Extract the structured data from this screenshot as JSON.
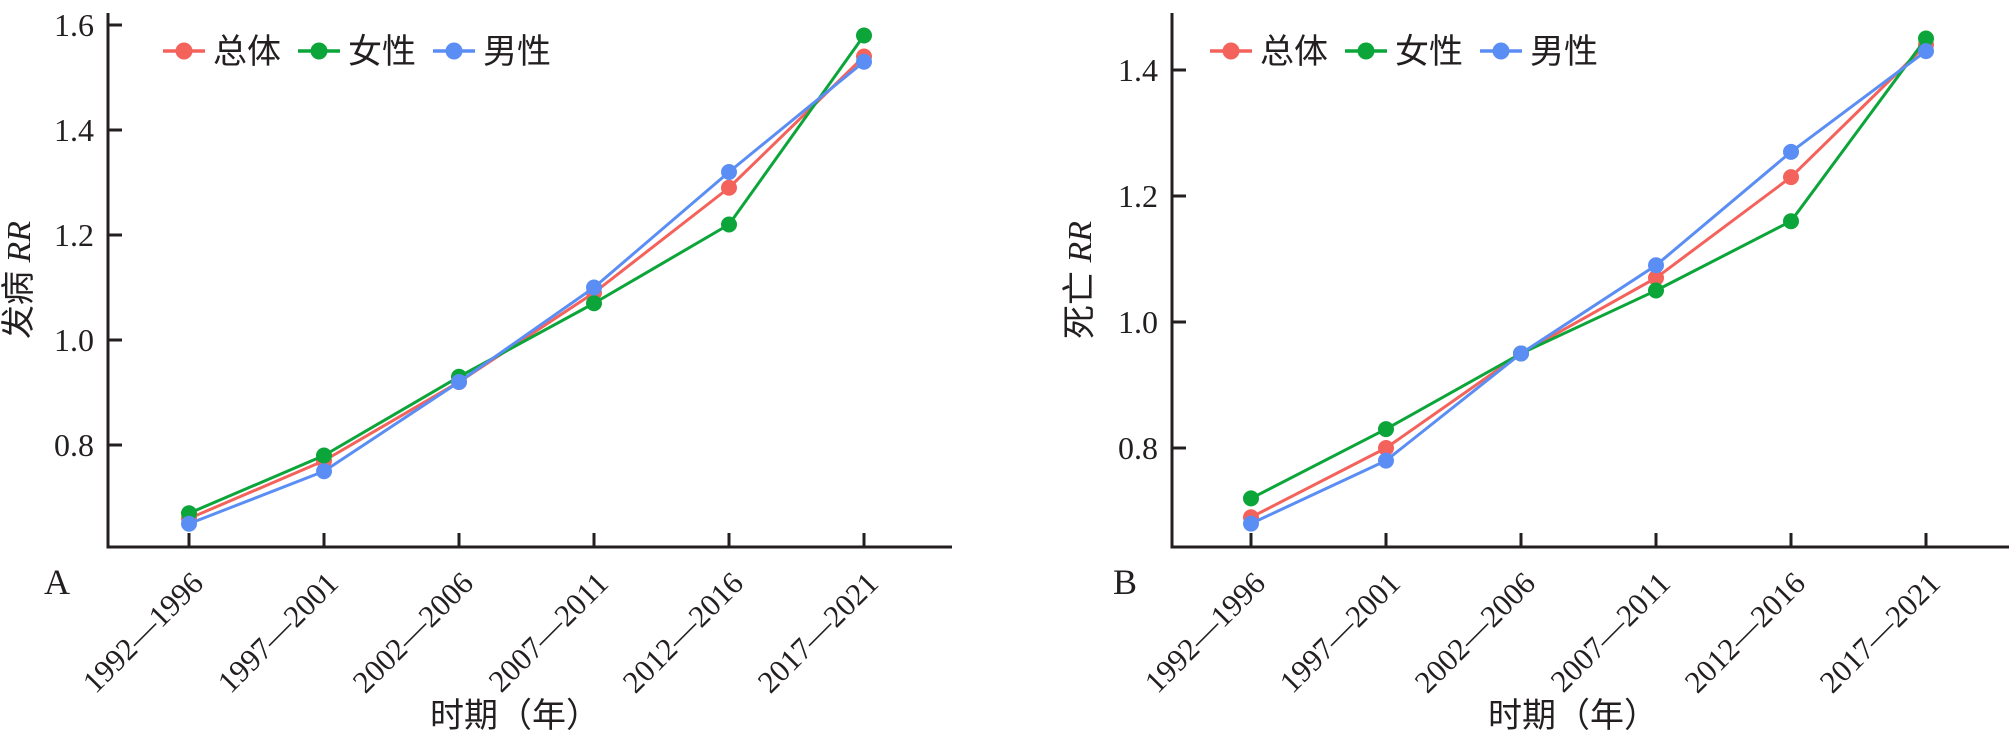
{
  "figure": {
    "background": "#ffffff",
    "xlabel": "时期（年）",
    "categories": [
      "1992—1996",
      "1997—2001",
      "2002—2006",
      "2007—2011",
      "2012—2016",
      "2017—2021"
    ]
  },
  "colors": {
    "axis": "#231f20",
    "text": "#231f20",
    "overall": "#f4625c",
    "female": "#0ca53a",
    "male": "#5b8ef4"
  },
  "chart_data": [
    {
      "type": "line",
      "panel_letter": "A",
      "ylabel": "发病 RR",
      "ylabel_cn": "发病",
      "ylabel_math": "RR",
      "xlabel": "时期（年）",
      "categories": [
        "1992—1996",
        "1997—2001",
        "2002—2006",
        "2007—2011",
        "2012—2016",
        "2017—2021"
      ],
      "yticks": [
        "0.8",
        "1.0",
        "1.2",
        "1.4",
        "1.6"
      ],
      "ylim": [
        0.61,
        1.62
      ],
      "grid": false,
      "legend_position": "top-left-inside",
      "marker": "circle",
      "series": [
        {
          "key": "overall",
          "name": "总体",
          "color": "#f4625c",
          "values": [
            0.66,
            0.77,
            0.92,
            1.09,
            1.29,
            1.54
          ]
        },
        {
          "key": "female",
          "name": "女性",
          "color": "#0ca53a",
          "values": [
            0.67,
            0.78,
            0.93,
            1.07,
            1.22,
            1.58
          ]
        },
        {
          "key": "male",
          "name": "男性",
          "color": "#5b8ef4",
          "values": [
            0.65,
            0.75,
            0.92,
            1.1,
            1.32,
            1.53
          ]
        }
      ]
    },
    {
      "type": "line",
      "panel_letter": "B",
      "ylabel": "死亡 RR",
      "ylabel_cn": "死亡",
      "ylabel_math": "RR",
      "xlabel": "时期（年）",
      "categories": [
        "1992—1996",
        "1997—2001",
        "2002—2006",
        "2007—2011",
        "2012—2016",
        "2017—2021"
      ],
      "yticks": [
        "0.8",
        "1.0",
        "1.2",
        "1.4"
      ],
      "ylim": [
        0.64,
        1.49
      ],
      "grid": false,
      "legend_position": "top-left-inside",
      "marker": "circle",
      "series": [
        {
          "key": "overall",
          "name": "总体",
          "color": "#f4625c",
          "values": [
            0.69,
            0.8,
            0.95,
            1.07,
            1.23,
            1.44
          ]
        },
        {
          "key": "female",
          "name": "女性",
          "color": "#0ca53a",
          "values": [
            0.72,
            0.83,
            0.95,
            1.05,
            1.16,
            1.45
          ]
        },
        {
          "key": "male",
          "name": "男性",
          "color": "#5b8ef4",
          "values": [
            0.68,
            0.78,
            0.95,
            1.09,
            1.27,
            1.43
          ]
        }
      ]
    }
  ]
}
